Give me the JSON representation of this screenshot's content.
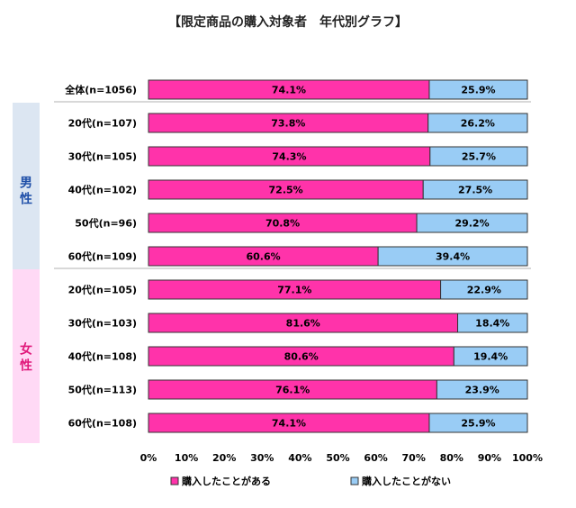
{
  "chart_data": {
    "type": "bar",
    "orientation": "horizontal",
    "stacked": true,
    "title": "【限定商品の購入対象者　年代別グラフ】",
    "categories": [
      "全体(n=1056)",
      "20代(n=107)",
      "30代(n=105)",
      "40代(n=102)",
      "50代(n=96)",
      "60代(n=109)",
      "20代(n=105)",
      "30代(n=103)",
      "40代(n=108)",
      "50代(n=113)",
      "60代(n=108)"
    ],
    "series": [
      {
        "name": "購入したことがある",
        "color": "#ff33aa",
        "values": [
          74.1,
          73.8,
          74.3,
          72.5,
          70.8,
          60.6,
          77.1,
          81.6,
          80.6,
          76.1,
          74.1
        ],
        "labels": [
          "74.1%",
          "73.8%",
          "74.3%",
          "72.5%",
          "70.8%",
          "60.6%",
          "77.1%",
          "81.6%",
          "80.6%",
          "76.1%",
          "74.1%"
        ]
      },
      {
        "name": "購入したことがない",
        "color": "#99ccf5",
        "values": [
          25.9,
          26.2,
          25.7,
          27.5,
          29.2,
          39.4,
          22.9,
          18.4,
          19.4,
          23.9,
          25.9
        ],
        "labels": [
          "25.9%",
          "26.2%",
          "25.7%",
          "27.5%",
          "29.2%",
          "39.4%",
          "22.9%",
          "18.4%",
          "19.4%",
          "23.9%",
          "25.9%"
        ]
      }
    ],
    "groups": [
      {
        "label": "男性",
        "color": "#1f4fa8",
        "bg": "#dce6f2",
        "rows": [
          1,
          5
        ]
      },
      {
        "label": "女性",
        "color": "#e0187a",
        "bg": "#ffd9f5",
        "rows": [
          6,
          10
        ]
      }
    ],
    "xlim": [
      0,
      100
    ],
    "xticks": [
      "0%",
      "10%",
      "20%",
      "30%",
      "40%",
      "50%",
      "60%",
      "70%",
      "80%",
      "90%",
      "100%"
    ],
    "legend_position": "bottom",
    "grid": false
  }
}
